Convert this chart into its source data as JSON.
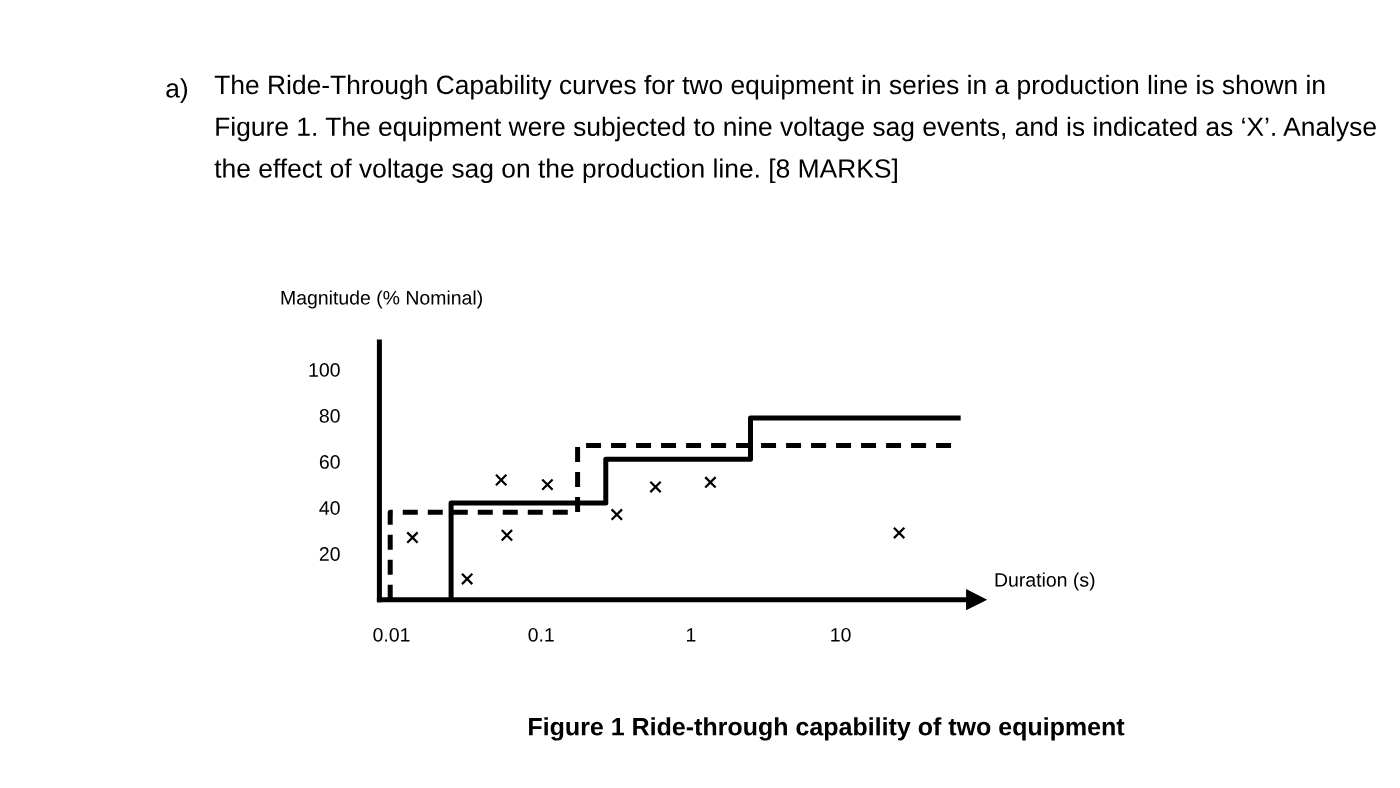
{
  "chart_data": {
    "type": "step",
    "title": "Figure 1 Ride-through capability of two equipment",
    "xlabel": "Duration (s)",
    "ylabel": "Magnitude (% Nominal)",
    "annotations": [
      "a)",
      "The Ride-Through Capability curves for two equipment in series in a production line is shown in Figure 1. The equipment were subjected to nine voltage sag events, and is indicated as ‘X’. Analyse the effect of voltage sag on the production line. [8 MARKS]"
    ],
    "log": "x",
    "xlim": [
      0.0083,
      80
    ],
    "xticks": [
      0.01,
      0.1,
      1,
      10
    ],
    "ylim": [
      0,
      112
    ],
    "yticks": [
      20,
      40,
      60,
      80,
      100
    ],
    "grid": false,
    "legend": false,
    "series": [
      {
        "color": "#000000",
        "line_style": "solid",
        "x": [
          0.025,
          0.025,
          0.27,
          0.27,
          2.5,
          2.5,
          61
        ],
        "values": [
          0,
          42,
          42,
          61,
          61,
          79,
          79
        ]
      },
      {
        "color": "#000000",
        "line_style": "dashed",
        "x": [
          0.0098,
          0.0098,
          0.175,
          0.175,
          58
        ],
        "values": [
          0,
          38,
          38,
          67,
          67
        ]
      },
      {
        "type": "scatter",
        "color": "#000000",
        "marker": "cross",
        "x": [
          0.0138,
          0.032,
          0.054,
          0.059,
          0.11,
          0.32,
          0.58,
          1.35,
          24.6
        ],
        "values": [
          27,
          9,
          52,
          28,
          50,
          37,
          49,
          51,
          29
        ]
      }
    ]
  }
}
